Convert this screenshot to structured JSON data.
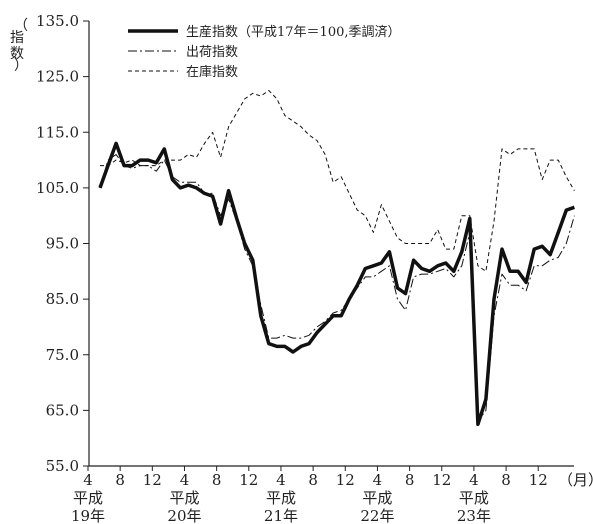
{
  "chart_data": {
    "type": "line",
    "ylabel": "（指数）",
    "x_unit": "（月）",
    "ylim": [
      55.0,
      135.0
    ],
    "yticks": [
      "135.0",
      "125.0",
      "115.0",
      "105.0",
      "95.0",
      "85.0",
      "75.0",
      "65.0",
      "55.0"
    ],
    "x_month_ticks": [
      "4",
      "8",
      "12",
      "4",
      "8",
      "12",
      "4",
      "8",
      "12",
      "4",
      "8",
      "12",
      "4",
      "8",
      "12"
    ],
    "x_year_labels": [
      {
        "line1": "平成",
        "line2": "19年"
      },
      {
        "line1": "平成",
        "line2": "20年"
      },
      {
        "line1": "平成",
        "line2": "21年"
      },
      {
        "line1": "平成",
        "line2": "22年"
      },
      {
        "line1": "平成",
        "line2": "23年"
      }
    ],
    "x_start": "平成19年4月",
    "x_end": "平成23年12月",
    "legend_position": "top-left",
    "series": [
      {
        "name": "生産指数（平成17年＝100,季調済）",
        "style": "solid-thick",
        "values": [
          105.0,
          109.0,
          113.0,
          109.0,
          109.0,
          110.0,
          110.0,
          109.5,
          112.0,
          106.5,
          105.0,
          105.5,
          105.0,
          104.0,
          103.5,
          98.5,
          104.5,
          99.5,
          95.0,
          92.0,
          82.0,
          77.0,
          76.5,
          76.5,
          75.5,
          76.5,
          77.0,
          79.0,
          80.5,
          82.0,
          82.0,
          85.0,
          87.5,
          90.5,
          91.0,
          91.5,
          93.5,
          87.0,
          86.0,
          92.0,
          90.5,
          90.0,
          91.0,
          91.5,
          90.0,
          93.5,
          99.5,
          62.5,
          67.0,
          85.0,
          94.0,
          90.0,
          90.0,
          88.0,
          94.0,
          94.5,
          93.0,
          97.0,
          101.0,
          101.5
        ]
      },
      {
        "name": "出荷指数",
        "style": "dash-dot",
        "values": [
          105.0,
          110.0,
          111.0,
          109.0,
          108.5,
          109.0,
          109.0,
          108.0,
          110.0,
          107.0,
          106.0,
          106.0,
          106.0,
          104.0,
          104.0,
          100.0,
          103.0,
          99.0,
          94.0,
          91.0,
          84.0,
          78.0,
          78.0,
          78.5,
          78.0,
          78.0,
          78.5,
          80.0,
          81.0,
          82.5,
          83.0,
          85.0,
          87.0,
          89.0,
          89.0,
          90.0,
          91.0,
          85.0,
          83.0,
          89.0,
          89.5,
          89.5,
          90.0,
          90.5,
          89.0,
          91.0,
          97.0,
          63.0,
          65.0,
          82.0,
          89.5,
          87.5,
          87.5,
          86.5,
          91.0,
          91.0,
          92.0,
          92.5,
          95.0,
          100.0
        ]
      },
      {
        "name": "在庫指数",
        "style": "dashed",
        "values": [
          109.0,
          109.0,
          110.0,
          109.5,
          110.0,
          109.0,
          109.0,
          109.0,
          110.0,
          110.0,
          110.0,
          111.0,
          110.5,
          113.0,
          115.0,
          110.5,
          116.0,
          118.5,
          121.0,
          122.0,
          121.5,
          122.5,
          121.0,
          118.0,
          117.0,
          116.0,
          114.5,
          113.5,
          111.0,
          106.0,
          107.0,
          104.0,
          101.0,
          100.0,
          97.0,
          102.0,
          99.0,
          96.0,
          95.0,
          95.0,
          95.0,
          95.0,
          97.5,
          94.0,
          94.0,
          100.0,
          100.0,
          91.0,
          90.0,
          99.0,
          112.0,
          111.0,
          112.0,
          112.0,
          112.0,
          106.5,
          110.0,
          110.0,
          107.0,
          104.5
        ]
      }
    ]
  }
}
